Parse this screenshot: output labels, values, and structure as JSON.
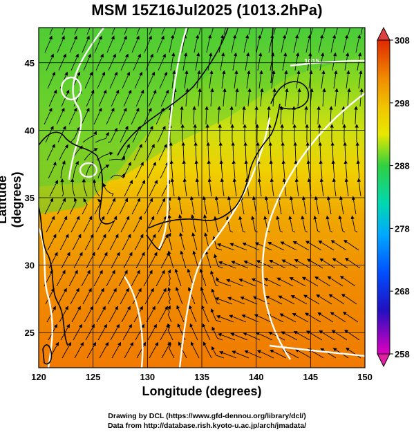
{
  "title": "MSM 15Z16Jul2025 (1013.2hPa)",
  "axes": {
    "xlabel": "Longitude (degrees)",
    "ylabel": "Latitude  (degrees)",
    "xticks": [
      "120",
      "125",
      "130",
      "135",
      "140",
      "145",
      "150"
    ],
    "yticks": [
      "25",
      "30",
      "35",
      "40",
      "45"
    ],
    "xlim": [
      120,
      150
    ],
    "ylim": [
      22.4,
      47.6
    ]
  },
  "colorbar": {
    "labels": [
      "308",
      "298",
      "288",
      "278",
      "268",
      "258"
    ],
    "range": [
      258,
      308
    ],
    "colors": [
      "#e0007a",
      "#5a00c8",
      "#0020e0",
      "#00a0ff",
      "#00e0c0",
      "#10d040",
      "#8ad820",
      "#f0e000",
      "#f0a000",
      "#e04000"
    ]
  },
  "contour_label": "1015",
  "credits": {
    "line1": "Drawing by DCL (https://www.gfd-dennou.org/library/dcl/)",
    "line2": "Data from http://database.rish.kyoto-u.ac.jp/arch/jmadata/"
  }
}
